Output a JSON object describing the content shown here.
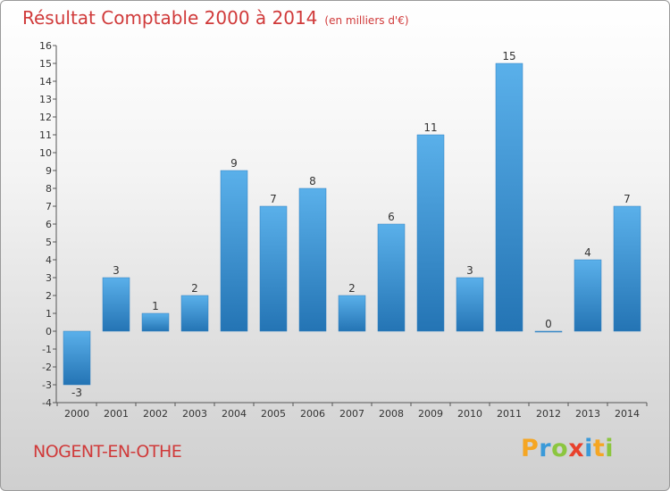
{
  "chart_data": {
    "type": "bar",
    "title": "Résultat Comptable 2000 à 2014",
    "subtitle": "(en milliers d'€)",
    "categories": [
      "2000",
      "2001",
      "2002",
      "2003",
      "2004",
      "2005",
      "2006",
      "2007",
      "2008",
      "2009",
      "2010",
      "2011",
      "2012",
      "2013",
      "2014"
    ],
    "values": [
      -3,
      3,
      1,
      2,
      9,
      7,
      8,
      2,
      6,
      11,
      3,
      15,
      0,
      4,
      7
    ],
    "ylim": [
      -4,
      16
    ],
    "yticks": [
      "-4",
      "-3",
      "-2",
      "-1",
      "0",
      "1",
      "2",
      "3",
      "4",
      "5",
      "6",
      "7",
      "8",
      "9",
      "10",
      "11",
      "12",
      "13",
      "14",
      "15",
      "16"
    ],
    "xlabel": "",
    "ylabel": "",
    "grid": false,
    "bar_color_top": "#5ab0ea",
    "bar_color_bottom": "#2474b4"
  },
  "footer": {
    "commune": "NOGENT-EN-OTHE",
    "brand": [
      "P",
      "r",
      "o",
      "x",
      "i",
      "t",
      "i"
    ],
    "brand_colors": [
      "#f5a623",
      "#3a9ad9",
      "#8cc63f",
      "#e8412c",
      "#3a9ad9",
      "#f5a623",
      "#8cc63f"
    ]
  },
  "colors": {
    "title": "#d03a3a"
  }
}
